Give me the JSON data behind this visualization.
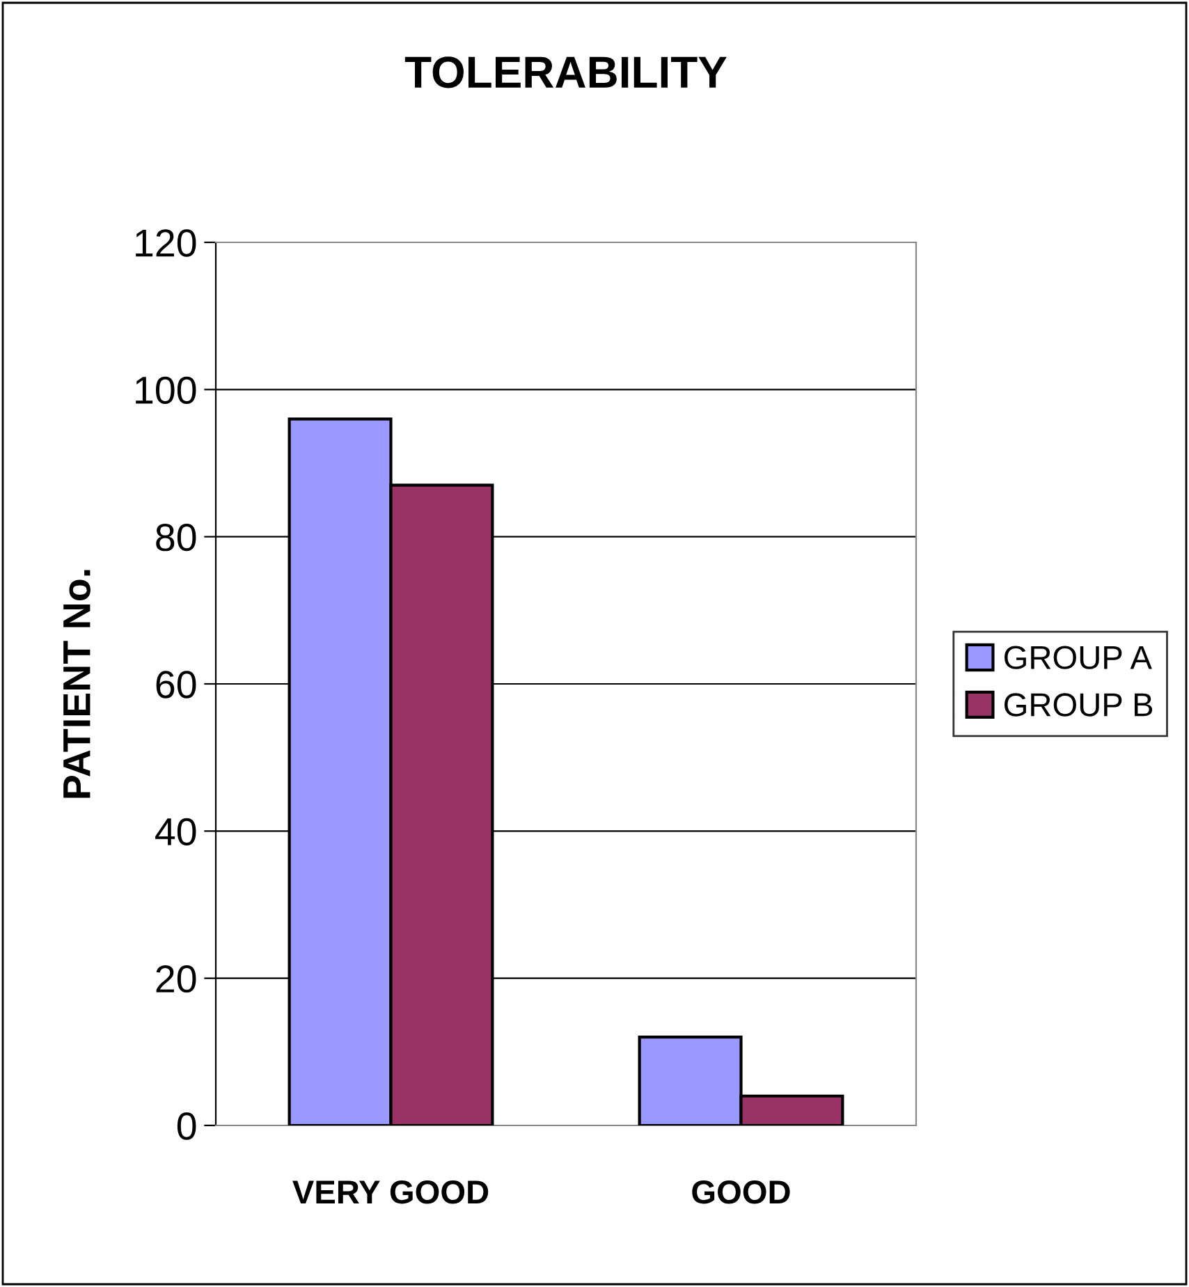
{
  "chart_data": {
    "type": "bar",
    "title": "TOLERABILITY",
    "ylabel": "PATIENT No.",
    "categories": [
      "VERY GOOD",
      "GOOD"
    ],
    "series": [
      {
        "name": "GROUP A",
        "color": "#9999ff",
        "values": [
          96,
          12
        ]
      },
      {
        "name": "GROUP B",
        "color": "#993366",
        "values": [
          87,
          4
        ]
      }
    ],
    "ylim": [
      0,
      120
    ],
    "yticks": [
      0,
      20,
      40,
      60,
      80,
      100,
      120
    ],
    "grid": "y",
    "legend": "right"
  }
}
